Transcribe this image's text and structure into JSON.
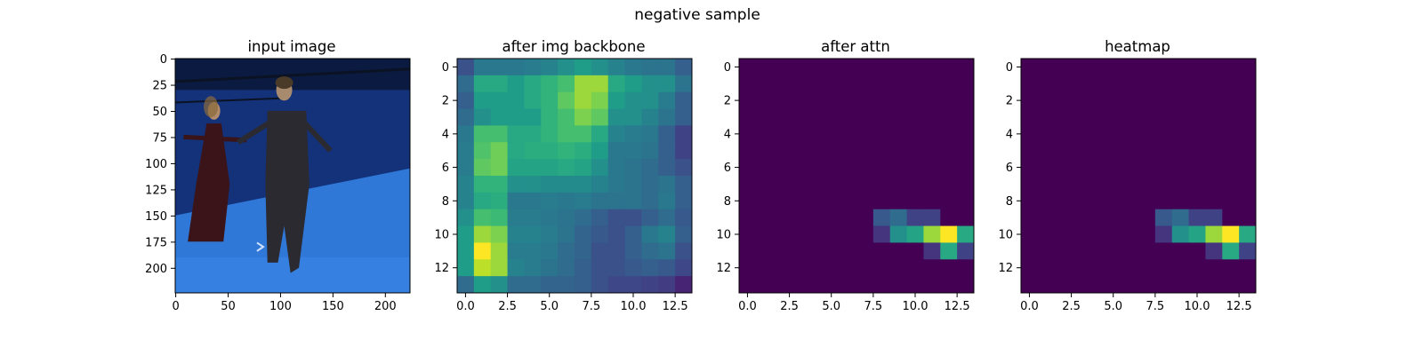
{
  "figure": {
    "suptitle": "negative sample"
  },
  "colors": {
    "viridis": [
      "#440154",
      "#482878",
      "#3e4989",
      "#31688e",
      "#26828e",
      "#1f9e89",
      "#35b779",
      "#6ece58",
      "#b5de2b",
      "#fde725"
    ],
    "studio_blue": "#1f4fa8",
    "floor_blue": "#2f78d8",
    "figure_dark": "#2a2a30"
  },
  "chart_data": [
    {
      "type": "image",
      "title": "input image",
      "image_size": [
        224,
        224
      ],
      "xticks": [
        0,
        50,
        100,
        150,
        200
      ],
      "yticks": [
        0,
        25,
        50,
        75,
        100,
        125,
        150,
        175,
        200
      ],
      "xlim": [
        -0.5,
        223.5
      ],
      "ylim": [
        223.5,
        -0.5
      ],
      "content": "photo of two people standing in a blue motion-capture studio"
    },
    {
      "type": "heatmap",
      "title": "after img backbone",
      "grid_size": [
        14,
        14
      ],
      "xticks": [
        0.0,
        2.5,
        5.0,
        7.5,
        10.0,
        12.5
      ],
      "xtick_labels": [
        "0.0",
        "2.5",
        "5.0",
        "7.5",
        "10.0",
        "12.5"
      ],
      "yticks": [
        0,
        2,
        4,
        6,
        8,
        10,
        12
      ],
      "xlim": [
        -0.5,
        13.5
      ],
      "ylim": [
        13.5,
        -0.5
      ],
      "colormap": "viridis",
      "values": [
        [
          0.25,
          0.4,
          0.4,
          0.4,
          0.42,
          0.45,
          0.5,
          0.55,
          0.5,
          0.45,
          0.4,
          0.38,
          0.38,
          0.3
        ],
        [
          0.35,
          0.6,
          0.6,
          0.55,
          0.6,
          0.65,
          0.7,
          0.85,
          0.85,
          0.6,
          0.55,
          0.5,
          0.5,
          0.38
        ],
        [
          0.3,
          0.55,
          0.55,
          0.55,
          0.6,
          0.65,
          0.75,
          0.85,
          0.8,
          0.55,
          0.5,
          0.5,
          0.42,
          0.3
        ],
        [
          0.35,
          0.5,
          0.55,
          0.55,
          0.55,
          0.65,
          0.7,
          0.8,
          0.75,
          0.5,
          0.5,
          0.45,
          0.38,
          0.3
        ],
        [
          0.4,
          0.7,
          0.7,
          0.6,
          0.6,
          0.65,
          0.7,
          0.7,
          0.6,
          0.45,
          0.42,
          0.4,
          0.3,
          0.2
        ],
        [
          0.42,
          0.72,
          0.78,
          0.6,
          0.62,
          0.62,
          0.65,
          0.62,
          0.55,
          0.4,
          0.4,
          0.38,
          0.3,
          0.2
        ],
        [
          0.42,
          0.75,
          0.78,
          0.58,
          0.58,
          0.58,
          0.6,
          0.58,
          0.5,
          0.4,
          0.38,
          0.35,
          0.3,
          0.25
        ],
        [
          0.45,
          0.65,
          0.65,
          0.5,
          0.5,
          0.48,
          0.48,
          0.48,
          0.45,
          0.4,
          0.38,
          0.35,
          0.38,
          0.3
        ],
        [
          0.45,
          0.6,
          0.62,
          0.4,
          0.4,
          0.42,
          0.4,
          0.42,
          0.38,
          0.38,
          0.38,
          0.35,
          0.4,
          0.3
        ],
        [
          0.5,
          0.7,
          0.68,
          0.42,
          0.42,
          0.4,
          0.38,
          0.35,
          0.3,
          0.25,
          0.25,
          0.3,
          0.35,
          0.28
        ],
        [
          0.55,
          0.85,
          0.8,
          0.45,
          0.45,
          0.42,
          0.38,
          0.32,
          0.28,
          0.25,
          0.3,
          0.4,
          0.45,
          0.3
        ],
        [
          0.55,
          1.0,
          0.85,
          0.42,
          0.42,
          0.4,
          0.35,
          0.32,
          0.25,
          0.25,
          0.3,
          0.35,
          0.38,
          0.25
        ],
        [
          0.55,
          0.9,
          0.85,
          0.45,
          0.42,
          0.38,
          0.35,
          0.3,
          0.25,
          0.25,
          0.28,
          0.3,
          0.28,
          0.22
        ],
        [
          0.35,
          0.55,
          0.5,
          0.35,
          0.35,
          0.32,
          0.32,
          0.3,
          0.25,
          0.22,
          0.22,
          0.2,
          0.18,
          0.1
        ]
      ]
    },
    {
      "type": "heatmap",
      "title": "after attn",
      "grid_size": [
        14,
        14
      ],
      "xticks": [
        0.0,
        2.5,
        5.0,
        7.5,
        10.0,
        12.5
      ],
      "xtick_labels": [
        "0.0",
        "2.5",
        "5.0",
        "7.5",
        "10.0",
        "12.5"
      ],
      "yticks": [
        0,
        2,
        4,
        6,
        8,
        10,
        12
      ],
      "xlim": [
        -0.5,
        13.5
      ],
      "ylim": [
        13.5,
        -0.5
      ],
      "colormap": "viridis",
      "background_value": 0,
      "nonzero_cells": [
        {
          "row": 9,
          "col": 8,
          "value": 0.28
        },
        {
          "row": 9,
          "col": 9,
          "value": 0.35
        },
        {
          "row": 9,
          "col": 10,
          "value": 0.2
        },
        {
          "row": 9,
          "col": 11,
          "value": 0.2
        },
        {
          "row": 10,
          "col": 8,
          "value": 0.15
        },
        {
          "row": 10,
          "col": 9,
          "value": 0.5
        },
        {
          "row": 10,
          "col": 10,
          "value": 0.58
        },
        {
          "row": 10,
          "col": 11,
          "value": 0.85
        },
        {
          "row": 10,
          "col": 12,
          "value": 1.0
        },
        {
          "row": 10,
          "col": 13,
          "value": 0.6
        },
        {
          "row": 11,
          "col": 11,
          "value": 0.15
        },
        {
          "row": 11,
          "col": 12,
          "value": 0.6
        },
        {
          "row": 11,
          "col": 13,
          "value": 0.2
        }
      ]
    },
    {
      "type": "heatmap",
      "title": "heatmap",
      "grid_size": [
        14,
        14
      ],
      "xticks": [
        0.0,
        2.5,
        5.0,
        7.5,
        10.0,
        12.5
      ],
      "xtick_labels": [
        "0.0",
        "2.5",
        "5.0",
        "7.5",
        "10.0",
        "12.5"
      ],
      "yticks": [
        0,
        2,
        4,
        6,
        8,
        10,
        12
      ],
      "xlim": [
        -0.5,
        13.5
      ],
      "ylim": [
        13.5,
        -0.5
      ],
      "colormap": "viridis",
      "background_value": 0,
      "nonzero_cells": [
        {
          "row": 9,
          "col": 8,
          "value": 0.28
        },
        {
          "row": 9,
          "col": 9,
          "value": 0.35
        },
        {
          "row": 9,
          "col": 10,
          "value": 0.2
        },
        {
          "row": 9,
          "col": 11,
          "value": 0.2
        },
        {
          "row": 10,
          "col": 8,
          "value": 0.15
        },
        {
          "row": 10,
          "col": 9,
          "value": 0.5
        },
        {
          "row": 10,
          "col": 10,
          "value": 0.58
        },
        {
          "row": 10,
          "col": 11,
          "value": 0.85
        },
        {
          "row": 10,
          "col": 12,
          "value": 1.0
        },
        {
          "row": 10,
          "col": 13,
          "value": 0.6
        },
        {
          "row": 11,
          "col": 11,
          "value": 0.15
        },
        {
          "row": 11,
          "col": 12,
          "value": 0.6
        },
        {
          "row": 11,
          "col": 13,
          "value": 0.2
        }
      ]
    }
  ]
}
